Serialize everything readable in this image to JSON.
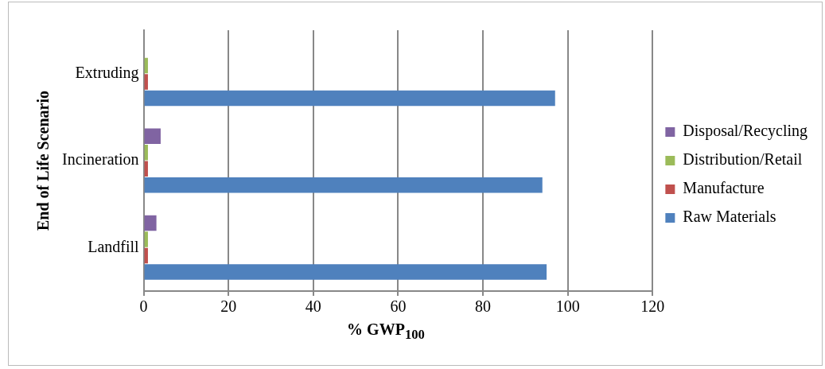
{
  "chart_data": {
    "type": "bar",
    "orientation": "horizontal",
    "xlabel": "% GWP$_{100}$",
    "ylabel": "End of Life Scenario",
    "categories": [
      "Extruding",
      "Incineration",
      "Landfill"
    ],
    "series": [
      {
        "name": "Raw Materials",
        "color": "#4f81bd",
        "values": [
          97,
          94,
          95
        ]
      },
      {
        "name": "Manufacture",
        "color": "#c0504d",
        "values": [
          1,
          1,
          1
        ]
      },
      {
        "name": "Distribution/Retail",
        "color": "#9bbb59",
        "values": [
          1,
          1,
          1
        ]
      },
      {
        "name": "Disposal/Recycling",
        "color": "#8064a2",
        "values": [
          0,
          4,
          3
        ]
      }
    ],
    "xlim": [
      0,
      120
    ],
    "xticks": [
      0,
      20,
      40,
      60,
      80,
      100,
      120
    ],
    "grid": "x",
    "legend": "right"
  }
}
